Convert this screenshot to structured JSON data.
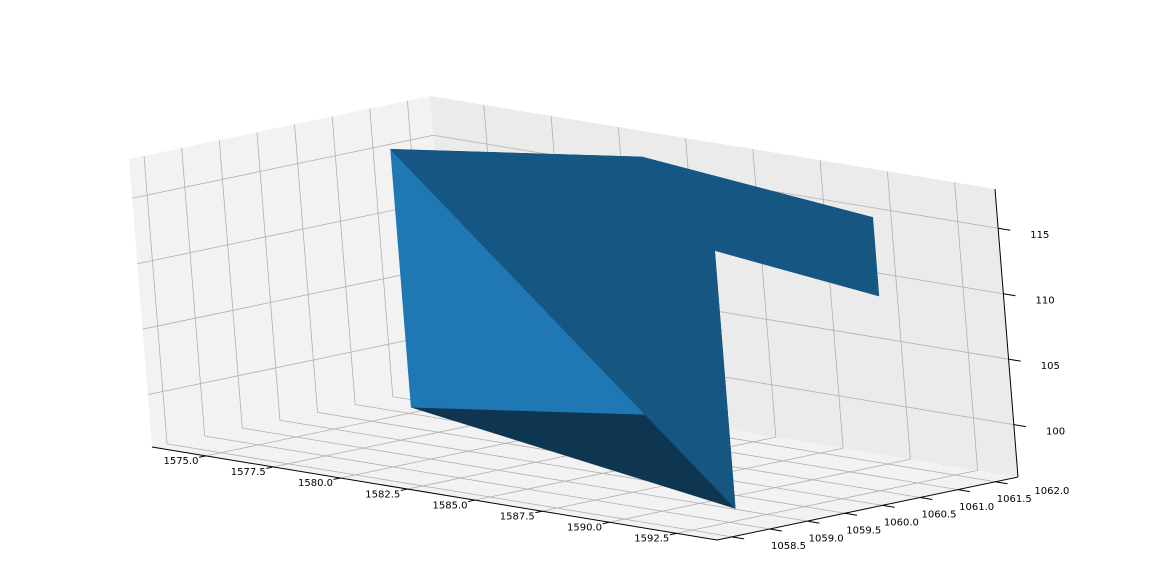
{
  "chart_data": {
    "type": "surface",
    "projection": "3d",
    "title": "",
    "xlabel": "",
    "ylabel": "",
    "zlabel": "",
    "x_ticks": [
      "1575.0",
      "1577.5",
      "1580.0",
      "1582.5",
      "1585.0",
      "1587.5",
      "1590.0",
      "1592.5"
    ],
    "y_ticks": [
      "1058.5",
      "1059.0",
      "1059.5",
      "1060.0",
      "1060.5",
      "1061.0",
      "1061.5",
      "1062.0"
    ],
    "z_ticks": [
      "100",
      "105",
      "110",
      "115"
    ],
    "xlim": [
      1573,
      1594
    ],
    "ylim": [
      1058.3,
      1062.3
    ],
    "zlim": [
      96,
      118
    ],
    "grid": true,
    "face_color": "#1f77b4",
    "vertices": [
      {
        "id": "A",
        "x": 1575.1,
        "y": 1061.0,
        "z": 116.2
      },
      {
        "id": "B",
        "x": 1575.1,
        "y": 1061.0,
        "z": 96.5
      },
      {
        "id": "C",
        "x": 1581.1,
        "y": 1062.2,
        "z": 116.2
      },
      {
        "id": "D",
        "x": 1581.1,
        "y": 1062.2,
        "z": 96.5
      },
      {
        "id": "E",
        "x": 1591.9,
        "y": 1061.4,
        "z": 116.2
      },
      {
        "id": "F",
        "x": 1591.9,
        "y": 1061.4,
        "z": 110.2
      },
      {
        "id": "G",
        "x": 1591.9,
        "y": 1059.3,
        "z": 116.2
      },
      {
        "id": "H",
        "x": 1591.9,
        "y": 1059.3,
        "z": 96.5
      }
    ],
    "faces": [
      {
        "name": "bottom-face",
        "vertices": [
          "B",
          "D",
          "H"
        ],
        "shade": "dark"
      },
      {
        "name": "inner-face",
        "vertices": [
          "D",
          "H",
          "G",
          "C"
        ],
        "shade": "medium"
      },
      {
        "name": "front-face",
        "vertices": [
          "A",
          "B",
          "D",
          "C"
        ],
        "shade": "light"
      },
      {
        "name": "top-back-face",
        "vertices": [
          "C",
          "E",
          "F",
          "G"
        ],
        "shade": "top"
      },
      {
        "name": "top-face",
        "vertices": [
          "A",
          "C",
          "G",
          "H"
        ],
        "shade": "top"
      }
    ]
  }
}
